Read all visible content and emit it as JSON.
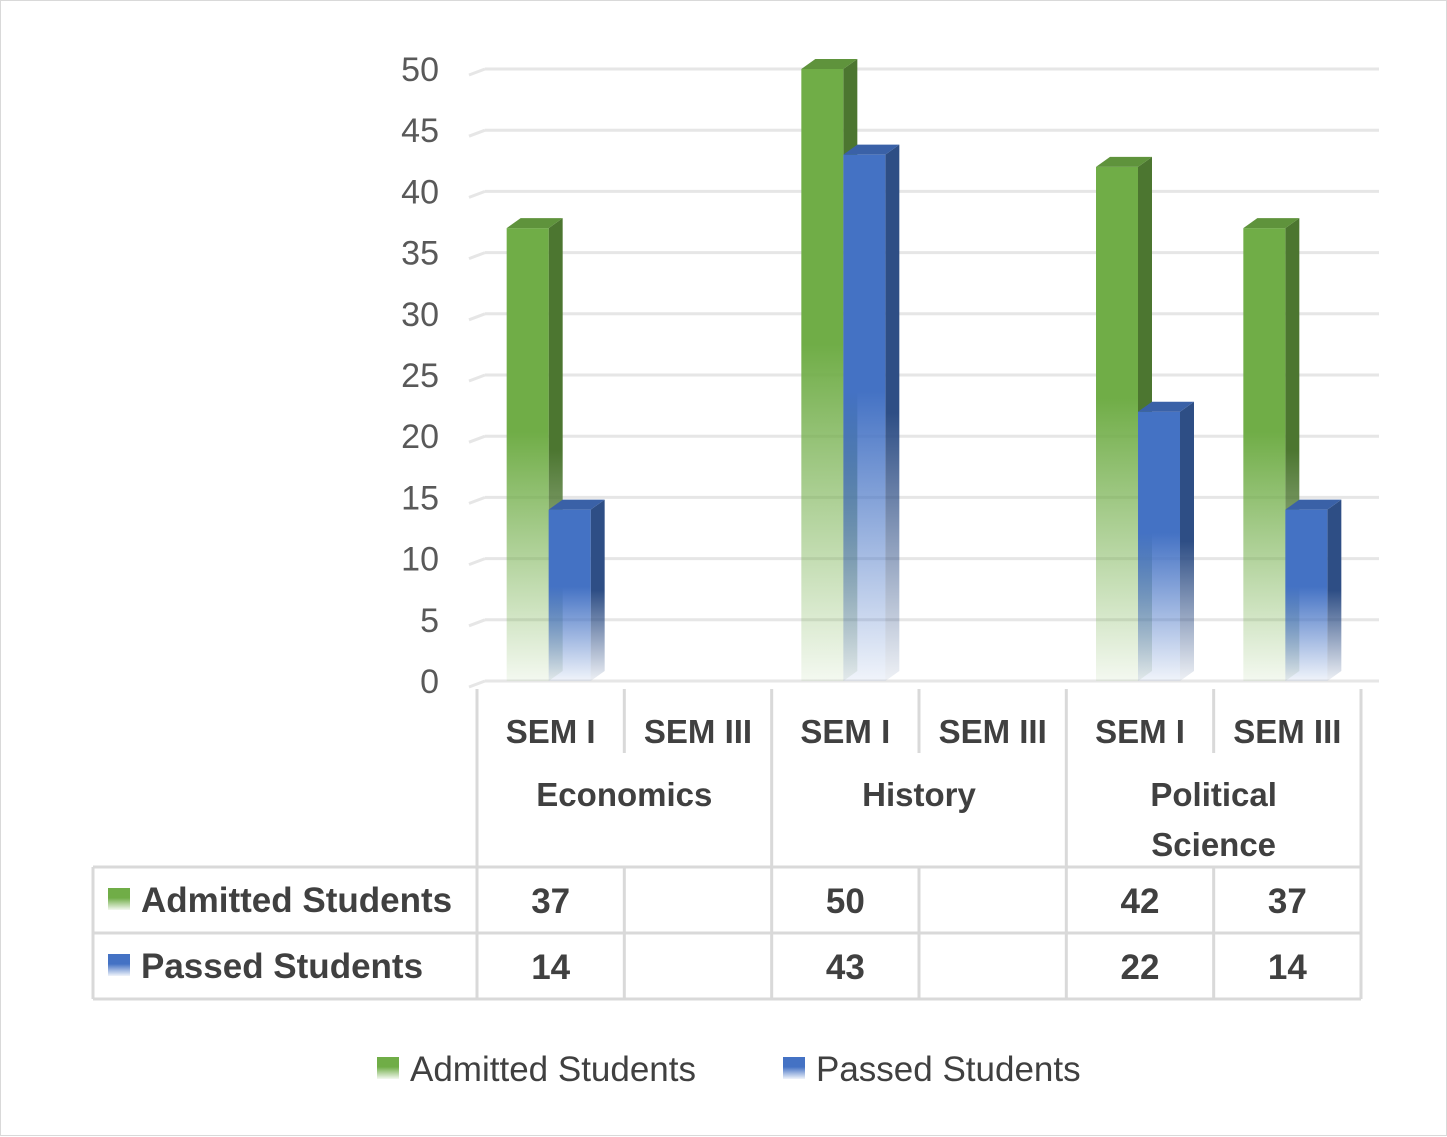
{
  "chart_data": {
    "type": "bar",
    "title": "",
    "xlabel": "",
    "ylabel": "",
    "ylim": [
      0,
      50
    ],
    "yticks": [
      0,
      5,
      10,
      15,
      20,
      25,
      30,
      35,
      40,
      45,
      50
    ],
    "grid": true,
    "groups": [
      {
        "name": "Economics",
        "categories": [
          "SEM I",
          "SEM III"
        ]
      },
      {
        "name": "History",
        "categories": [
          "SEM I",
          "SEM III"
        ]
      },
      {
        "name": "Political Science",
        "categories": [
          "SEM I",
          "SEM III"
        ]
      }
    ],
    "categories": [
      "SEM I",
      "SEM III",
      "SEM I",
      "SEM III",
      "SEM I",
      "SEM III"
    ],
    "series": [
      {
        "name": "Admitted Students",
        "color": "#70ad47",
        "values": [
          37,
          null,
          50,
          null,
          42,
          37
        ]
      },
      {
        "name": "Passed Students",
        "color": "#4472c4",
        "values": [
          14,
          null,
          43,
          null,
          22,
          14
        ]
      }
    ],
    "legend_position": "bottom",
    "data_table": true
  }
}
